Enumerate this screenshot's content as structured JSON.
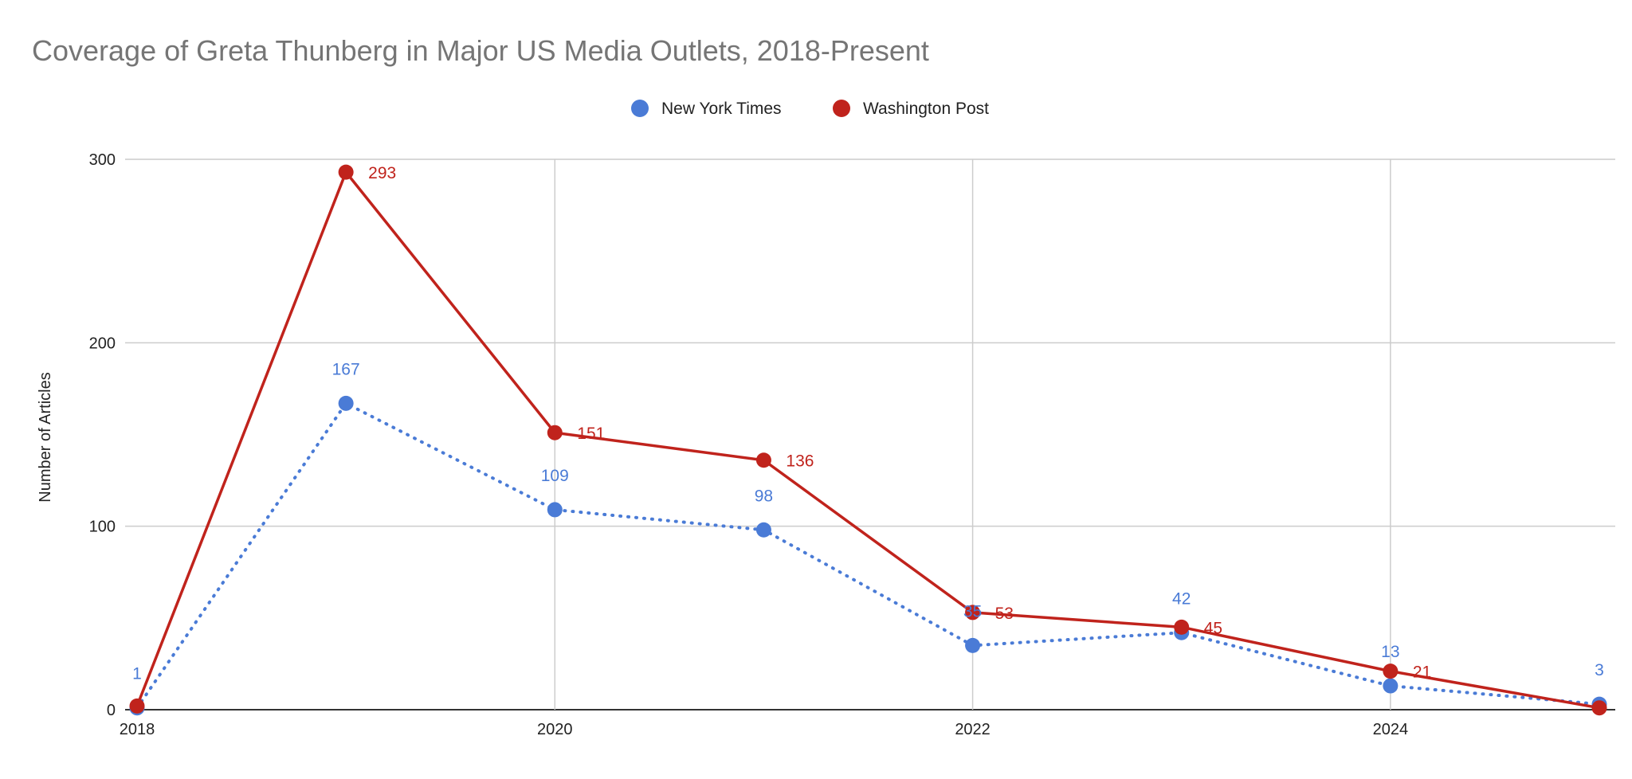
{
  "chart_data": {
    "type": "line",
    "title": "Coverage of Greta Thunberg in Major US Media Outlets, 2018-Present",
    "xlabel": "",
    "ylabel": "Number of Articles",
    "x": [
      2018,
      2019,
      2020,
      2021,
      2022,
      2023,
      2024,
      2025
    ],
    "xlim": [
      2018,
      2025
    ],
    "ylim": [
      0,
      300
    ],
    "x_ticks": [
      "2018",
      "2020",
      "2022",
      "2024"
    ],
    "y_ticks": [
      "0",
      "100",
      "200",
      "300"
    ],
    "grid": true,
    "legend_position": "top",
    "series": [
      {
        "name": "New York Times",
        "color": "#4a7bd6",
        "style": "dotted",
        "values": [
          1,
          167,
          109,
          98,
          35,
          42,
          13,
          3
        ],
        "labels": [
          "1",
          "167",
          "109",
          "98",
          "35",
          "42",
          "13",
          "3"
        ]
      },
      {
        "name": "Washington Post",
        "color": "#c0231c",
        "style": "solid",
        "values": [
          2,
          293,
          151,
          136,
          53,
          45,
          21,
          1
        ],
        "labels": [
          "",
          "293",
          "151",
          "136",
          "53",
          "45",
          "21",
          ""
        ]
      }
    ]
  }
}
